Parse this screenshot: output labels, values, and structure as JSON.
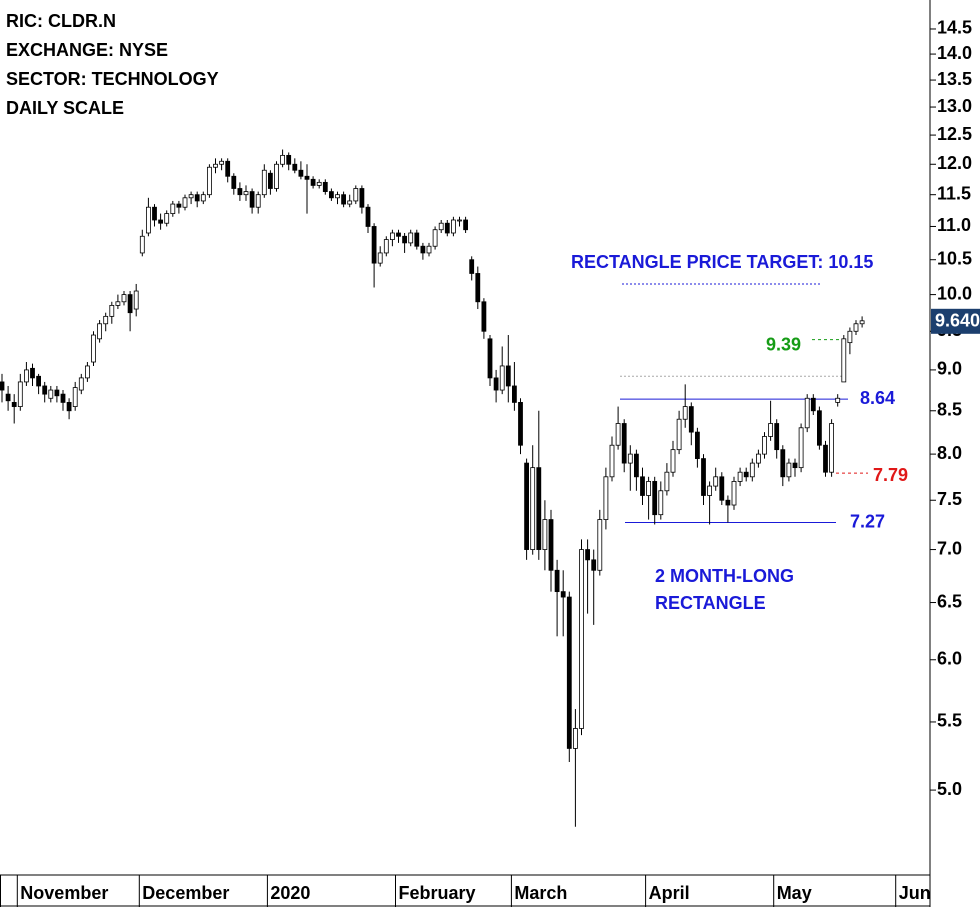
{
  "chart_data": {
    "type": "candlestick",
    "header": [
      "RIC: CLDR.N",
      "EXCHANGE: NYSE",
      "SECTOR: TECHNOLOGY",
      "DAILY SCALE"
    ],
    "log_scale": true,
    "ylim": [
      4.44,
      15.1
    ],
    "yticks": [
      {
        "value": 5,
        "label": "5.0"
      },
      5.5,
      {
        "value": 6,
        "label": "6.0"
      },
      6.5,
      {
        "value": 7,
        "label": "7.0"
      },
      7.5,
      {
        "value": 8,
        "label": "8.0"
      },
      8.5,
      {
        "value": 9,
        "label": "9.0"
      },
      9.5,
      {
        "value": 10,
        "label": "10.0"
      },
      10.5,
      {
        "value": 11,
        "label": "11.0"
      },
      11.5,
      {
        "value": 12,
        "label": "12.0"
      },
      12.5,
      {
        "value": 13,
        "label": "13.0"
      },
      13.5,
      {
        "value": 14,
        "label": "14.0"
      },
      14.5
    ],
    "up_color": "#ffffff",
    "down_color": "#000000",
    "categories": [
      null,
      null,
      null,
      "November",
      null,
      null,
      null,
      null,
      null,
      null,
      null,
      null,
      null,
      null,
      null,
      null,
      null,
      null,
      null,
      null,
      null,
      null,
      null,
      "December",
      null,
      null,
      null,
      null,
      null,
      null,
      null,
      null,
      null,
      null,
      null,
      null,
      null,
      null,
      null,
      null,
      null,
      null,
      null,
      null,
      "2020",
      null,
      null,
      null,
      null,
      null,
      null,
      null,
      null,
      null,
      null,
      null,
      null,
      null,
      null,
      null,
      null,
      null,
      null,
      null,
      null,
      "February",
      null,
      null,
      null,
      null,
      null,
      null,
      null,
      null,
      null,
      null,
      null,
      null,
      null,
      null,
      null,
      null,
      null,
      null,
      "March",
      null,
      null,
      null,
      null,
      null,
      null,
      null,
      null,
      null,
      null,
      null,
      null,
      null,
      null,
      null,
      null,
      null,
      null,
      null,
      null,
      null,
      "April",
      null,
      null,
      null,
      null,
      null,
      null,
      null,
      null,
      null,
      null,
      null,
      null,
      null,
      null,
      null,
      null,
      null,
      null,
      null,
      null,
      "May",
      null,
      null,
      null,
      null,
      null,
      null,
      null,
      null,
      null,
      null,
      null,
      null,
      null,
      null,
      null,
      null,
      null,
      null,
      null,
      "Jun"
    ],
    "ohlc": [
      [
        8.85,
        8.95,
        8.6,
        8.75
      ],
      [
        8.7,
        8.8,
        8.5,
        8.62
      ],
      [
        8.6,
        8.7,
        8.35,
        8.55
      ],
      [
        8.55,
        8.95,
        8.5,
        8.85
      ],
      [
        8.85,
        9.1,
        8.8,
        9.0
      ],
      [
        9.02,
        9.08,
        8.8,
        8.9
      ],
      [
        8.92,
        8.95,
        8.7,
        8.8
      ],
      [
        8.8,
        8.85,
        8.6,
        8.7
      ],
      [
        8.65,
        8.8,
        8.6,
        8.75
      ],
      [
        8.75,
        8.8,
        8.6,
        8.68
      ],
      [
        8.7,
        8.75,
        8.5,
        8.6
      ],
      [
        8.6,
        8.65,
        8.4,
        8.5
      ],
      [
        8.55,
        8.85,
        8.5,
        8.78
      ],
      [
        8.75,
        8.95,
        8.7,
        8.9
      ],
      [
        8.9,
        9.1,
        8.85,
        9.05
      ],
      [
        9.1,
        9.5,
        9.05,
        9.45
      ],
      [
        9.4,
        9.65,
        9.35,
        9.6
      ],
      [
        9.6,
        9.75,
        9.5,
        9.7
      ],
      [
        9.7,
        9.9,
        9.6,
        9.85
      ],
      [
        9.85,
        10.0,
        9.8,
        9.9
      ],
      [
        9.9,
        10.05,
        9.85,
        10.0
      ],
      [
        10.0,
        10.05,
        9.5,
        9.75
      ],
      [
        9.8,
        10.15,
        9.7,
        10.05
      ],
      [
        10.6,
        10.95,
        10.55,
        10.85
      ],
      [
        10.9,
        11.45,
        10.85,
        11.3
      ],
      [
        11.3,
        11.35,
        11.0,
        11.1
      ],
      [
        11.1,
        11.2,
        10.95,
        11.05
      ],
      [
        11.05,
        11.25,
        11.0,
        11.2
      ],
      [
        11.2,
        11.4,
        11.15,
        11.35
      ],
      [
        11.35,
        11.4,
        11.2,
        11.3
      ],
      [
        11.3,
        11.5,
        11.25,
        11.45
      ],
      [
        11.45,
        11.55,
        11.35,
        11.5
      ],
      [
        11.5,
        11.55,
        11.3,
        11.4
      ],
      [
        11.4,
        11.55,
        11.35,
        11.5
      ],
      [
        11.5,
        12.0,
        11.45,
        11.95
      ],
      [
        11.95,
        12.1,
        11.85,
        12.0
      ],
      [
        12.0,
        12.1,
        11.9,
        12.05
      ],
      [
        12.05,
        12.1,
        11.7,
        11.8
      ],
      [
        11.8,
        11.85,
        11.5,
        11.6
      ],
      [
        11.6,
        11.7,
        11.4,
        11.5
      ],
      [
        11.5,
        11.65,
        11.4,
        11.55
      ],
      [
        11.55,
        11.6,
        11.2,
        11.3
      ],
      [
        11.3,
        11.55,
        11.2,
        11.5
      ],
      [
        11.5,
        12.0,
        11.45,
        11.9
      ],
      [
        11.85,
        11.9,
        11.5,
        11.6
      ],
      [
        11.6,
        12.05,
        11.55,
        12.0
      ],
      [
        12.0,
        12.25,
        11.95,
        12.15
      ],
      [
        12.15,
        12.2,
        11.9,
        12.0
      ],
      [
        12.0,
        12.1,
        11.85,
        11.9
      ],
      [
        11.9,
        12.05,
        11.75,
        11.8
      ],
      [
        11.8,
        12.0,
        11.2,
        11.75
      ],
      [
        11.75,
        11.8,
        11.6,
        11.65
      ],
      [
        11.65,
        11.75,
        11.6,
        11.7
      ],
      [
        11.7,
        11.75,
        11.5,
        11.55
      ],
      [
        11.55,
        11.6,
        11.4,
        11.45
      ],
      [
        11.45,
        11.55,
        11.35,
        11.5
      ],
      [
        11.5,
        11.55,
        11.3,
        11.35
      ],
      [
        11.35,
        11.5,
        11.3,
        11.4
      ],
      [
        11.4,
        11.65,
        11.35,
        11.6
      ],
      [
        11.6,
        11.65,
        11.2,
        11.3
      ],
      [
        11.3,
        11.35,
        10.9,
        11.0
      ],
      [
        11.0,
        11.05,
        10.1,
        10.45
      ],
      [
        10.45,
        10.7,
        10.4,
        10.6
      ],
      [
        10.6,
        10.85,
        10.55,
        10.8
      ],
      [
        10.8,
        10.95,
        10.7,
        10.9
      ],
      [
        10.9,
        10.95,
        10.75,
        10.85
      ],
      [
        10.85,
        10.9,
        10.6,
        10.75
      ],
      [
        10.75,
        10.95,
        10.7,
        10.9
      ],
      [
        10.9,
        10.95,
        10.65,
        10.7
      ],
      [
        10.7,
        10.75,
        10.5,
        10.6
      ],
      [
        10.6,
        10.75,
        10.55,
        10.7
      ],
      [
        10.7,
        11.0,
        10.65,
        10.95
      ],
      [
        10.95,
        11.1,
        10.9,
        11.05
      ],
      [
        11.05,
        11.1,
        10.85,
        10.9
      ],
      [
        10.9,
        11.15,
        10.85,
        11.1
      ],
      [
        11.1,
        11.15,
        11.0,
        11.1
      ],
      [
        11.1,
        11.15,
        10.9,
        10.95
      ],
      [
        10.5,
        10.55,
        10.2,
        10.3
      ],
      [
        10.3,
        10.4,
        9.8,
        9.9
      ],
      [
        9.9,
        9.95,
        9.4,
        9.5
      ],
      [
        9.4,
        9.45,
        8.8,
        8.9
      ],
      [
        8.9,
        9.0,
        8.6,
        8.75
      ],
      [
        8.75,
        9.3,
        8.7,
        9.05
      ],
      [
        9.05,
        9.45,
        8.6,
        8.8
      ],
      [
        8.8,
        9.1,
        8.5,
        8.6
      ],
      [
        8.6,
        8.65,
        8.0,
        8.1
      ],
      [
        7.9,
        7.95,
        6.9,
        7.0
      ],
      [
        7.0,
        8.1,
        6.95,
        7.85
      ],
      [
        7.85,
        8.5,
        6.9,
        7.0
      ],
      [
        7.0,
        7.5,
        6.8,
        7.3
      ],
      [
        7.3,
        7.4,
        6.6,
        6.8
      ],
      [
        6.8,
        6.9,
        6.2,
        6.6
      ],
      [
        6.6,
        6.8,
        6.2,
        6.55
      ],
      [
        6.55,
        6.6,
        5.2,
        5.3
      ],
      [
        5.3,
        5.6,
        4.75,
        5.45
      ],
      [
        5.45,
        7.1,
        5.4,
        7.0
      ],
      [
        7.0,
        7.1,
        6.4,
        6.9
      ],
      [
        6.9,
        7.0,
        6.3,
        6.8
      ],
      [
        6.8,
        7.4,
        6.75,
        7.3
      ],
      [
        7.3,
        7.85,
        7.2,
        7.75
      ],
      [
        7.75,
        8.2,
        7.7,
        8.1
      ],
      [
        8.1,
        8.55,
        8.05,
        8.35
      ],
      [
        8.35,
        8.4,
        7.8,
        7.9
      ],
      [
        7.9,
        8.1,
        7.6,
        8.0
      ],
      [
        8.0,
        8.05,
        7.6,
        7.75
      ],
      [
        7.75,
        7.85,
        7.45,
        7.55
      ],
      [
        7.55,
        7.75,
        7.3,
        7.7
      ],
      [
        7.7,
        7.75,
        7.25,
        7.35
      ],
      [
        7.35,
        7.7,
        7.3,
        7.6
      ],
      [
        7.6,
        7.9,
        7.55,
        7.8
      ],
      [
        7.8,
        8.15,
        7.75,
        8.05
      ],
      [
        8.05,
        8.5,
        8.0,
        8.4
      ],
      [
        8.4,
        8.82,
        8.3,
        8.55
      ],
      [
        8.55,
        8.6,
        8.1,
        8.25
      ],
      [
        8.25,
        8.3,
        7.85,
        7.95
      ],
      [
        7.95,
        8.0,
        7.45,
        7.55
      ],
      [
        7.55,
        7.7,
        7.25,
        7.65
      ],
      [
        7.65,
        7.85,
        7.6,
        7.75
      ],
      [
        7.75,
        7.8,
        7.45,
        7.5
      ],
      [
        7.5,
        7.55,
        7.27,
        7.45
      ],
      [
        7.45,
        7.75,
        7.4,
        7.7
      ],
      [
        7.7,
        7.85,
        7.65,
        7.8
      ],
      [
        7.8,
        7.85,
        7.7,
        7.75
      ],
      [
        7.75,
        7.95,
        7.7,
        7.9
      ],
      [
        7.9,
        8.05,
        7.85,
        8.0
      ],
      [
        8.0,
        8.25,
        7.95,
        8.2
      ],
      [
        8.2,
        8.62,
        8.15,
        8.35
      ],
      [
        8.35,
        8.4,
        7.95,
        8.05
      ],
      [
        8.05,
        8.1,
        7.65,
        7.75
      ],
      [
        7.75,
        7.95,
        7.7,
        7.9
      ],
      [
        7.9,
        7.95,
        7.75,
        7.85
      ],
      [
        7.85,
        8.35,
        7.8,
        8.3
      ],
      [
        8.3,
        8.7,
        8.25,
        8.65
      ],
      [
        8.65,
        8.7,
        8.45,
        8.5
      ],
      [
        8.5,
        8.55,
        8.05,
        8.1
      ],
      [
        8.1,
        8.15,
        7.75,
        7.8
      ],
      [
        7.8,
        8.4,
        7.75,
        8.35
      ],
      [
        8.6,
        8.7,
        8.55,
        8.65
      ],
      [
        8.85,
        9.45,
        8.85,
        9.4
      ],
      [
        9.35,
        9.55,
        9.2,
        9.5
      ],
      [
        9.5,
        9.65,
        9.45,
        9.6
      ],
      [
        9.6,
        9.7,
        9.55,
        9.64
      ],
      null,
      null,
      null,
      null,
      null,
      null
    ],
    "levels": [
      {
        "value": 10.15,
        "color": "#1a1ad8",
        "style": "dotted"
      },
      {
        "value": 9.39,
        "color": "#169c16",
        "style": "dashed"
      },
      {
        "value": 8.92,
        "color": "#a8a8a8",
        "style": "dotted"
      },
      {
        "value": 8.64,
        "color": "#1a1ad8",
        "style": "solid"
      },
      {
        "value": 7.79,
        "color": "#e01818",
        "style": "dashed"
      },
      {
        "value": 7.27,
        "color": "#1a1ad8",
        "style": "solid"
      }
    ],
    "target_label": "RECTANGLE PRICE TARGET: 10.15",
    "pattern_label": [
      "2 MONTH-LONG",
      "RECTANGLE"
    ],
    "annotation_color": "#1a1ad8",
    "last_price": {
      "value": 9.64,
      "label": "9.640",
      "color": "#1c3f6e"
    }
  }
}
